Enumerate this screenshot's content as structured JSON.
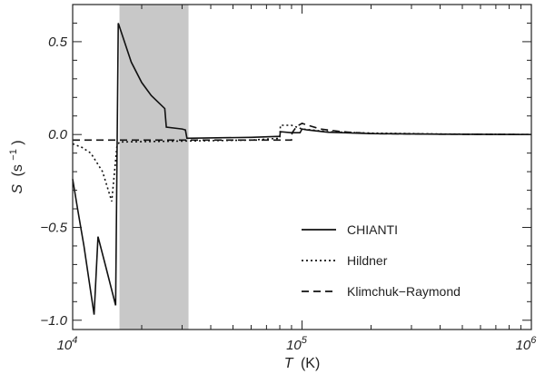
{
  "chart_data": {
    "type": "line",
    "x_scale": "log",
    "xlim": [
      10000,
      1000000
    ],
    "ylim": [
      -1.05,
      0.7
    ],
    "xlabel_var": "T",
    "xlabel_unit": "(K)",
    "ylabel_var": "S",
    "ylabel_unit": "(s",
    "ylabel_exp": "−1",
    "ylabel_close": ")",
    "x_ticks": [
      {
        "value": 10000,
        "base": "10",
        "exp": "4"
      },
      {
        "value": 100000,
        "base": "10",
        "exp": "5"
      },
      {
        "value": 1000000,
        "base": "10",
        "exp": "6"
      }
    ],
    "y_ticks": [
      {
        "value": 0.5,
        "label": "0.5"
      },
      {
        "value": 0.0,
        "label": "0.0"
      },
      {
        "value": -0.5,
        "label": "−0.5"
      },
      {
        "value": -1.0,
        "label": "−1.0"
      }
    ],
    "grid": false,
    "legend_position": "lower-right",
    "shaded_band": {
      "x": [
        16000,
        32000
      ],
      "color": "#c8c8c8"
    },
    "series": [
      {
        "name": "CHIANTI",
        "style": "solid",
        "points": [
          [
            10000,
            -0.24
          ],
          [
            10500,
            -0.4
          ],
          [
            11200,
            -0.6
          ],
          [
            12400,
            -0.97
          ],
          [
            12900,
            -0.55
          ],
          [
            14000,
            -0.72
          ],
          [
            15400,
            -0.92
          ],
          [
            15800,
            0.6
          ],
          [
            18000,
            0.39
          ],
          [
            20000,
            0.28
          ],
          [
            22000,
            0.21
          ],
          [
            25200,
            0.14
          ],
          [
            25600,
            0.04
          ],
          [
            30000,
            0.03
          ],
          [
            31000,
            0.025
          ],
          [
            31500,
            -0.02
          ],
          [
            60000,
            -0.015
          ],
          [
            80000,
            -0.01
          ],
          [
            80500,
            0.015
          ],
          [
            90000,
            0.01
          ],
          [
            98000,
            0.01
          ],
          [
            100000,
            0.03
          ],
          [
            105000,
            0.025
          ],
          [
            130000,
            0.012
          ],
          [
            200000,
            0.005
          ],
          [
            400000,
            0.002
          ],
          [
            1000000,
            0.0
          ]
        ]
      },
      {
        "name": "Hildner",
        "style": "dotted",
        "points": [
          [
            10000,
            -0.05
          ],
          [
            11000,
            -0.07
          ],
          [
            12000,
            -0.1
          ],
          [
            13500,
            -0.2
          ],
          [
            14800,
            -0.36
          ],
          [
            15600,
            -0.06
          ],
          [
            16000,
            -0.04
          ],
          [
            60000,
            -0.03
          ],
          [
            80000,
            -0.02
          ],
          [
            80500,
            0.05
          ],
          [
            90000,
            0.05
          ],
          [
            100000,
            0.03
          ],
          [
            130000,
            0.015
          ],
          [
            200000,
            0.008
          ],
          [
            400000,
            0.003
          ],
          [
            1000000,
            0.0
          ]
        ]
      },
      {
        "name": "Klimchuk−Raymond",
        "style": "dashed",
        "points": [
          [
            10000,
            -0.03
          ],
          [
            30000,
            -0.03
          ],
          [
            90000,
            -0.03
          ],
          [
            90500,
            0.01
          ],
          [
            95000,
            0.045
          ],
          [
            100000,
            0.06
          ],
          [
            120000,
            0.03
          ],
          [
            150000,
            0.015
          ],
          [
            200000,
            0.005
          ],
          [
            400000,
            0.002
          ],
          [
            1000000,
            0.0
          ]
        ]
      }
    ]
  }
}
